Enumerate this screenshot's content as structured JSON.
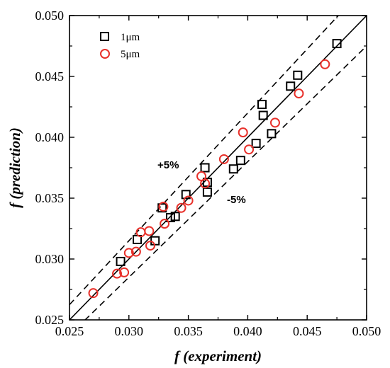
{
  "chart_data": {
    "type": "scatter",
    "xlabel": "f (experiment)",
    "ylabel": "f (prediction)",
    "xlim": [
      0.025,
      0.05
    ],
    "ylim": [
      0.025,
      0.05
    ],
    "xticks": [
      "0.025",
      "0.030",
      "0.035",
      "0.040",
      "0.045",
      "0.050"
    ],
    "yticks": [
      "0.025",
      "0.030",
      "0.035",
      "0.040",
      "0.045",
      "0.050"
    ],
    "grid": false,
    "legend_position": "top-left",
    "series": [
      {
        "name": "1μm",
        "marker": "square",
        "color": "#000000",
        "points": [
          [
            0.0293,
            0.0298
          ],
          [
            0.0307,
            0.0316
          ],
          [
            0.0322,
            0.0315
          ],
          [
            0.0328,
            0.0342
          ],
          [
            0.0335,
            0.0334
          ],
          [
            0.0339,
            0.0335
          ],
          [
            0.0348,
            0.0353
          ],
          [
            0.0364,
            0.0375
          ],
          [
            0.0366,
            0.0355
          ],
          [
            0.0366,
            0.0363
          ],
          [
            0.0388,
            0.0374
          ],
          [
            0.0394,
            0.0381
          ],
          [
            0.0407,
            0.0395
          ],
          [
            0.0412,
            0.0427
          ],
          [
            0.0413,
            0.0418
          ],
          [
            0.042,
            0.0403
          ],
          [
            0.0436,
            0.0442
          ],
          [
            0.0442,
            0.0451
          ],
          [
            0.0475,
            0.0477
          ]
        ]
      },
      {
        "name": "5μm",
        "marker": "circle",
        "color": "#e8302a",
        "points": [
          [
            0.027,
            0.0272
          ],
          [
            0.029,
            0.0288
          ],
          [
            0.0296,
            0.0289
          ],
          [
            0.03,
            0.0305
          ],
          [
            0.0306,
            0.0306
          ],
          [
            0.031,
            0.0322
          ],
          [
            0.0317,
            0.0323
          ],
          [
            0.0318,
            0.0311
          ],
          [
            0.0329,
            0.0343
          ],
          [
            0.033,
            0.0329
          ],
          [
            0.0344,
            0.0342
          ],
          [
            0.035,
            0.0348
          ],
          [
            0.0361,
            0.0368
          ],
          [
            0.0364,
            0.0362
          ],
          [
            0.038,
            0.0382
          ],
          [
            0.0396,
            0.0404
          ],
          [
            0.0401,
            0.039
          ],
          [
            0.0423,
            0.0412
          ],
          [
            0.0443,
            0.0436
          ],
          [
            0.0465,
            0.046
          ]
        ]
      }
    ],
    "reference_lines": [
      {
        "slope": 1.0,
        "style": "solid"
      },
      {
        "slope": 1.05,
        "style": "dashed"
      },
      {
        "slope": 0.95,
        "style": "dashed"
      }
    ],
    "annotations": {
      "plus": "+5%",
      "minus": "-5%"
    }
  }
}
